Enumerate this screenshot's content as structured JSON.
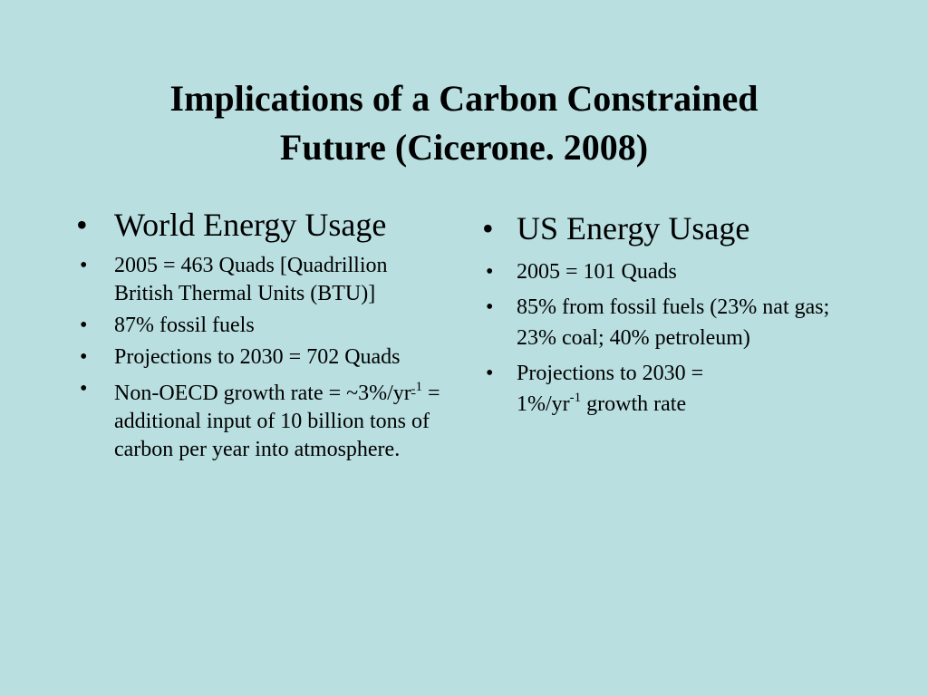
{
  "slide": {
    "title_line1": "Implications of a Carbon Constrained",
    "title_line2": "Future (Cicerone. 2008)"
  },
  "left": {
    "heading": "World Energy Usage",
    "bullet_char": "•",
    "items": [
      "2005 = 463 Quads [Quadrillion British Thermal Units (BTU)]",
      "87% fossil fuels",
      "Projections to 2030 = 702 Quads"
    ],
    "growth": {
      "before": "Non-OECD growth rate = ~3%/yr",
      "sup_mark": "-",
      "sup_value": "1",
      "after": " = additional input of 10 billion tons of carbon per year into atmosphere."
    }
  },
  "right": {
    "heading": "US Energy Usage",
    "bullet_char": "•",
    "items": [
      "2005 = 101 Quads",
      "85% from fossil fuels (23% nat gas; 23% coal; 40% petroleum)"
    ],
    "projection": {
      "line1": "Projections to 2030 =",
      "before": "1%/yr",
      "sup": "-1",
      "after": " growth rate"
    }
  }
}
